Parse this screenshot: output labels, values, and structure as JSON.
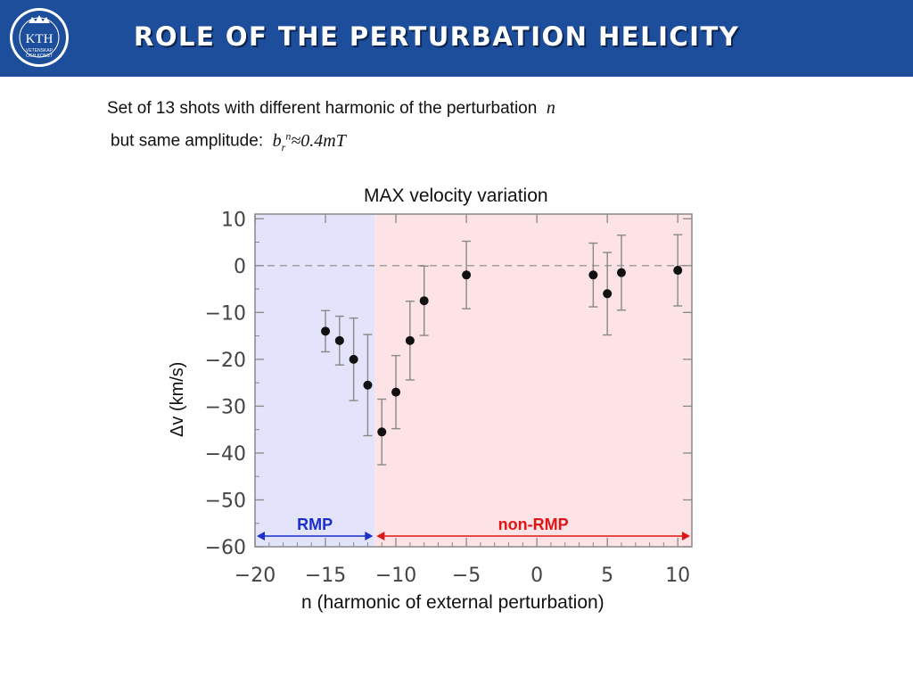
{
  "header": {
    "title": "ROLE OF THE PERTURBATION HELICITY",
    "logo_text": "KTH",
    "logo_subtext_1": "VETENSKAP",
    "logo_subtext_2": "OCH KONST"
  },
  "intro": {
    "line1": "Set of 13 shots with different harmonic of the perturbation",
    "line1_symbol": "n",
    "line2": "but same amplitude:",
    "formula_base": "b",
    "formula_sub": "r",
    "formula_sup": "n",
    "formula_rest": "≈0.4mT"
  },
  "colors": {
    "header_bg": "#1d4e9b",
    "rmp_region": "#e3e3fb",
    "nonrmp_region": "#fde3e6",
    "rmp_arrow": "#1a2fcc",
    "nonrmp_arrow": "#e01515"
  },
  "chart_data": {
    "type": "scatter",
    "title": "MAX velocity variation",
    "xlabel": "n (harmonic of external perturbation)",
    "ylabel": "Δv (km/s)",
    "xlim": [
      -20,
      11
    ],
    "ylim": [
      -60,
      11
    ],
    "xticks": [
      -20,
      -15,
      -10,
      -5,
      0,
      5,
      10
    ],
    "yticks": [
      10,
      0,
      -10,
      -20,
      -30,
      -40,
      -50,
      -60
    ],
    "reference_line_y": 0,
    "regions": [
      {
        "label": "RMP",
        "x_from": -20,
        "x_to": -11.5
      },
      {
        "label": "non-RMP",
        "x_from": -11.5,
        "x_to": 11
      }
    ],
    "points": [
      {
        "x": -15,
        "y": -14,
        "yerr": 4.4
      },
      {
        "x": -14,
        "y": -16,
        "yerr": 5.2
      },
      {
        "x": -13,
        "y": -20,
        "yerr": 8.8
      },
      {
        "x": -12,
        "y": -25.5,
        "yerr": 10.8
      },
      {
        "x": -11,
        "y": -35.5,
        "yerr": 7
      },
      {
        "x": -10,
        "y": -27,
        "yerr": 7.8
      },
      {
        "x": -9,
        "y": -16,
        "yerr": 8.4
      },
      {
        "x": -8,
        "y": -7.5,
        "yerr": 7.4
      },
      {
        "x": -5,
        "y": -2,
        "yerr": 7.2
      },
      {
        "x": 4,
        "y": -2,
        "yerr": 6.8
      },
      {
        "x": 5,
        "y": -6,
        "yerr": 8.8
      },
      {
        "x": 6,
        "y": -1.5,
        "yerr": 8
      },
      {
        "x": 10,
        "y": -1,
        "yerr": 7.6
      }
    ]
  }
}
